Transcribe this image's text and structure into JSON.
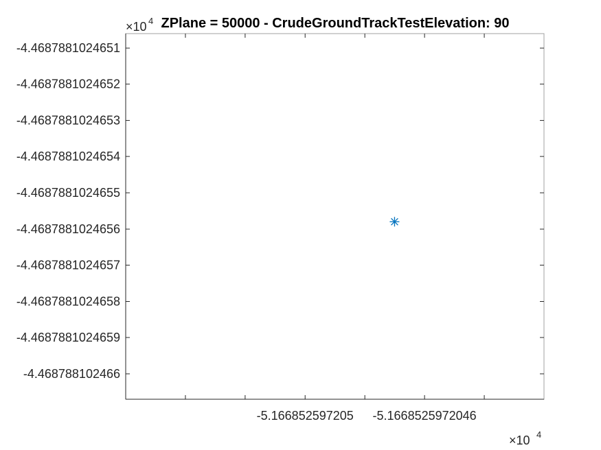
{
  "chart_data": {
    "type": "scatter",
    "title": "ZPlane = 50000 - CrudeGroundTrackTestElevation: 90",
    "xlabel": "",
    "ylabel": "",
    "x_exponent_label": "×10",
    "x_exponent_power": "4",
    "y_exponent_label": "×10",
    "y_exponent_power": "4",
    "x_ticks": [
      {
        "value": -5.166852597205,
        "label": "-5.166852597205"
      },
      {
        "value": -5.1668525972046,
        "label": "-5.1668525972046"
      }
    ],
    "x_minor_tick_values": [
      -5.1668525972054,
      -5.1668525972052,
      -5.166852597205,
      -5.1668525972048,
      -5.1668525972046,
      -5.1668525972044
    ],
    "xlim": [
      -5.1668525972056,
      -5.1668525972042
    ],
    "y_ticks": [
      {
        "value": -4.4687881024651,
        "label": "-4.4687881024651"
      },
      {
        "value": -4.4687881024652,
        "label": "-4.4687881024652"
      },
      {
        "value": -4.4687881024653,
        "label": "-4.4687881024653"
      },
      {
        "value": -4.4687881024654,
        "label": "-4.4687881024654"
      },
      {
        "value": -4.4687881024655,
        "label": "-4.4687881024655"
      },
      {
        "value": -4.4687881024656,
        "label": "-4.4687881024656"
      },
      {
        "value": -4.4687881024657,
        "label": "-4.4687881024657"
      },
      {
        "value": -4.4687881024658,
        "label": "-4.4687881024658"
      },
      {
        "value": -4.4687881024659,
        "label": "-4.4687881024659"
      },
      {
        "value": -4.468788102466,
        "label": "-4.468788102466"
      }
    ],
    "ylim": [
      -4.46878810246607,
      -4.46878810246506
    ],
    "series": [
      {
        "marker": "asterisk",
        "color": "#0072BD",
        "points": [
          {
            "x": -5.1668525972047,
            "y": -4.46878810246558
          }
        ]
      }
    ],
    "grid": false,
    "legend": "none",
    "colors": {
      "marker": "#0072BD",
      "axes": "#262626",
      "axes_box": "#a0a0a0",
      "text": "#262626"
    }
  }
}
